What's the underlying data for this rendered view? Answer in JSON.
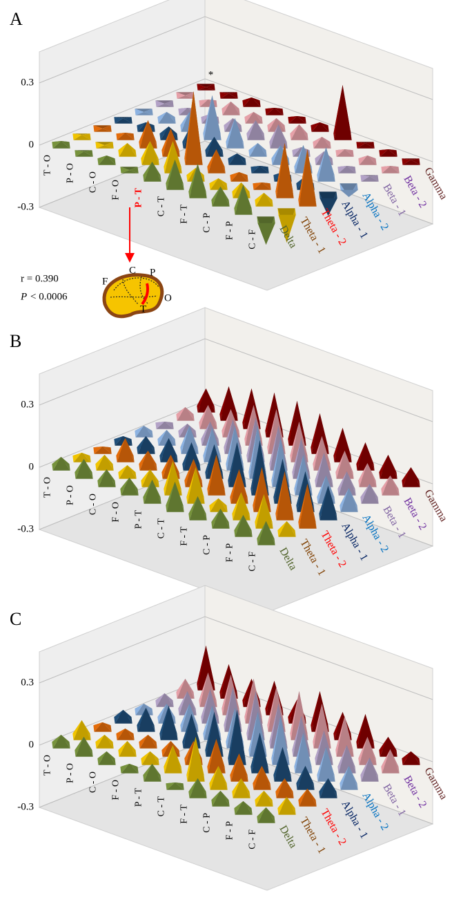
{
  "chart_data": [
    {
      "type": "pyramid3d",
      "panel": "A",
      "ylim": [
        -0.3,
        0.45
      ],
      "yticks": [
        -0.3,
        0,
        0.3
      ],
      "grid": true,
      "categories": [
        "T - O",
        "P - O",
        "C - O",
        "F - O",
        "P - T",
        "C - T",
        "F - T",
        "C - P",
        "F - P",
        "C - F"
      ],
      "highlight_index": 4,
      "highlight_color": "#ff0000",
      "star": "*",
      "stat_r": "r =  0.390",
      "stat_p": {
        "symbol": "P",
        "text": "< 0.0006"
      },
      "brain_labels": [
        "F",
        "C",
        "P",
        "T",
        "O"
      ],
      "series": [
        {
          "name": "Delta",
          "color": "#77933c",
          "label_color": "#4f6228",
          "values": [
            0.02,
            0.01,
            0.03,
            0.0,
            0.08,
            0.13,
            0.15,
            0.08,
            0.13,
            -0.12
          ]
        },
        {
          "name": "Theta - 1",
          "color": "#f2c500",
          "label_color": "#7f3f00",
          "values": [
            0.01,
            0.0,
            0.05,
            0.1,
            0.14,
            0.05,
            0.04,
            0.06,
            0.05,
            -0.15
          ]
        },
        {
          "name": "Theta - 2",
          "color": "#e46c0a",
          "label_color": "#ff0000",
          "values": [
            0.0,
            0.02,
            0.12,
            0.12,
            0.34,
            0.1,
            0.03,
            0.02,
            0.25,
            0.26
          ]
        },
        {
          "name": "Alpha - 1",
          "color": "#1f4e79",
          "label_color": "#002060",
          "values": [
            0.01,
            0.03,
            0.05,
            0.1,
            0.08,
            0.04,
            0.02,
            0.03,
            0.05,
            -0.1
          ]
        },
        {
          "name": "Alpha - 2",
          "color": "#8db3e2",
          "label_color": "#0070c0",
          "values": [
            0.0,
            0.04,
            0.08,
            0.2,
            0.13,
            0.05,
            0.08,
            0.12,
            0.15,
            -0.05
          ]
        },
        {
          "name": "Beta - 1",
          "color": "#b3a2c7",
          "label_color": "#8064a2",
          "values": [
            0.0,
            0.02,
            0.03,
            0.05,
            0.08,
            0.1,
            0.03,
            0.05,
            0.02,
            0.01
          ]
        },
        {
          "name": "Beta - 2",
          "color": "#e6a0a8",
          "label_color": "#7030a0",
          "values": [
            0.0,
            0.02,
            0.05,
            0.04,
            0.05,
            0.06,
            0.04,
            0.02,
            0.03,
            0.02
          ]
        },
        {
          "name": "Gamma",
          "color": "#8b0000",
          "label_color": "#632423",
          "values": [
            0.0,
            0.01,
            0.03,
            0.02,
            0.02,
            0.03,
            0.25,
            0.01,
            0.02,
            0.01
          ]
        }
      ]
    },
    {
      "type": "pyramid3d",
      "panel": "B",
      "ylim": [
        -0.3,
        0.45
      ],
      "yticks": [
        -0.3,
        0,
        0.3
      ],
      "grid": true,
      "categories": [
        "T - O",
        "P - O",
        "C - O",
        "F - O",
        "P - T",
        "C - T",
        "F - T",
        "C - P",
        "F - P",
        "C - F"
      ],
      "series": [
        {
          "name": "Delta",
          "color": "#77933c",
          "label_color": "#4f6228",
          "values": [
            0.05,
            0.08,
            0.07,
            0.07,
            0.1,
            0.13,
            0.1,
            0.08,
            0.09,
            0.1
          ]
        },
        {
          "name": "Theta - 1",
          "color": "#f2c500",
          "label_color": "#7f3f00",
          "values": [
            0.03,
            0.06,
            0.05,
            0.07,
            0.15,
            0.16,
            0.05,
            0.12,
            0.15,
            0.06
          ]
        },
        {
          "name": "Theta - 2",
          "color": "#e46c0a",
          "label_color": "#ff0000",
          "values": [
            0.02,
            0.1,
            0.08,
            0.1,
            0.12,
            0.18,
            0.15,
            0.2,
            0.22,
            0.2
          ]
        },
        {
          "name": "Alpha - 1",
          "color": "#1f4e79",
          "label_color": "#002060",
          "values": [
            0.03,
            0.07,
            0.1,
            0.12,
            0.15,
            0.2,
            0.25,
            0.2,
            0.18,
            0.15
          ]
        },
        {
          "name": "Alpha - 2",
          "color": "#8db3e2",
          "label_color": "#0070c0",
          "values": [
            0.04,
            0.06,
            0.12,
            0.15,
            0.2,
            0.24,
            0.22,
            0.18,
            0.12,
            0.1
          ]
        },
        {
          "name": "Beta - 1",
          "color": "#b3a2c7",
          "label_color": "#8064a2",
          "values": [
            0.02,
            0.05,
            0.1,
            0.15,
            0.2,
            0.2,
            0.18,
            0.15,
            0.1,
            0.08
          ]
        },
        {
          "name": "Beta - 2",
          "color": "#e6a0a8",
          "label_color": "#7030a0",
          "values": [
            0.05,
            0.1,
            0.12,
            0.18,
            0.2,
            0.18,
            0.15,
            0.12,
            0.1,
            0.08
          ]
        },
        {
          "name": "Gamma",
          "color": "#8b0000",
          "label_color": "#632423",
          "values": [
            0.1,
            0.15,
            0.18,
            0.2,
            0.2,
            0.18,
            0.15,
            0.12,
            0.1,
            0.08
          ]
        }
      ]
    },
    {
      "type": "pyramid3d",
      "panel": "C",
      "ylim": [
        -0.3,
        0.45
      ],
      "yticks": [
        -0.3,
        0,
        0.3
      ],
      "grid": true,
      "categories": [
        "T - O",
        "P - O",
        "C - O",
        "F - O",
        "P - T",
        "C - T",
        "F - T",
        "C - P",
        "F - P",
        "C - F"
      ],
      "series": [
        {
          "name": "Delta",
          "color": "#77933c",
          "label_color": "#4f6228",
          "values": [
            0.05,
            0.08,
            0.05,
            0.03,
            0.07,
            0.02,
            0.08,
            0.06,
            0.05,
            0.06
          ]
        },
        {
          "name": "Theta - 1",
          "color": "#f2c500",
          "label_color": "#7f3f00",
          "values": [
            0.08,
            0.05,
            0.06,
            0.05,
            0.12,
            0.2,
            0.1,
            0.08,
            0.06,
            0.07
          ]
        },
        {
          "name": "Theta - 2",
          "color": "#e46c0a",
          "label_color": "#ff0000",
          "values": [
            0.03,
            0.04,
            0.05,
            0.06,
            0.1,
            0.15,
            0.12,
            0.1,
            0.08,
            0.07
          ]
        },
        {
          "name": "Alpha - 1",
          "color": "#1f4e79",
          "label_color": "#002060",
          "values": [
            0.05,
            0.1,
            0.15,
            0.15,
            0.2,
            0.25,
            0.18,
            0.15,
            0.1,
            0.08
          ]
        },
        {
          "name": "Alpha - 2",
          "color": "#8db3e2",
          "label_color": "#0070c0",
          "values": [
            0.04,
            0.08,
            0.12,
            0.15,
            0.18,
            0.2,
            0.22,
            0.18,
            0.15,
            0.1
          ]
        },
        {
          "name": "Beta - 1",
          "color": "#b3a2c7",
          "label_color": "#8064a2",
          "values": [
            0.05,
            0.1,
            0.15,
            0.2,
            0.22,
            0.2,
            0.18,
            0.15,
            0.12,
            0.1
          ]
        },
        {
          "name": "Beta - 2",
          "color": "#e6a0a8",
          "label_color": "#7030a0",
          "values": [
            0.08,
            0.15,
            0.18,
            0.2,
            0.2,
            0.22,
            0.2,
            0.18,
            0.12,
            0.1
          ]
        },
        {
          "name": "Gamma",
          "color": "#8b0000",
          "label_color": "#632423",
          "values": [
            0.2,
            0.15,
            0.12,
            0.15,
            0.1,
            0.18,
            0.12,
            0.15,
            0.08,
            0.05
          ]
        }
      ]
    }
  ]
}
